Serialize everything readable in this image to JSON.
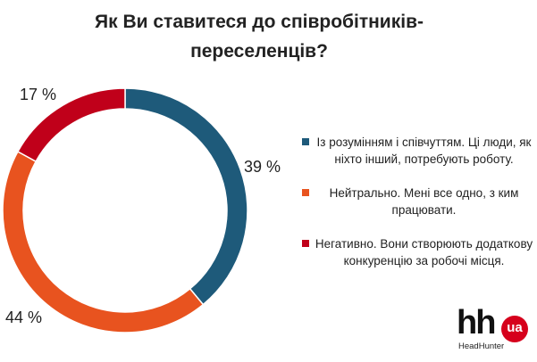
{
  "chart_data": {
    "type": "pie",
    "title": "Як Ви ставитеся до співробітників-переселенців?",
    "categories": [
      "Із розумінням і співчуттям. Ці люди, як ніхто інший, потребують роботу.",
      "Нейтрально. Мені все одно, з ким працювати.",
      "Негативно. Вони створюють додаткову конкуренцію за робочі місця."
    ],
    "values": [
      39,
      44,
      17
    ],
    "value_labels": [
      "39 %",
      "44 %",
      "17 %"
    ],
    "colors": [
      "#1e5a7a",
      "#e8531f",
      "#c0001a"
    ],
    "donut": true,
    "legend": "right"
  },
  "title_lines": [
    "Як Ви ставитеся до співробітників-",
    "переселенців?"
  ],
  "logo": {
    "mark": "hh",
    "badge": "ua",
    "caption": "HeadHunter"
  }
}
